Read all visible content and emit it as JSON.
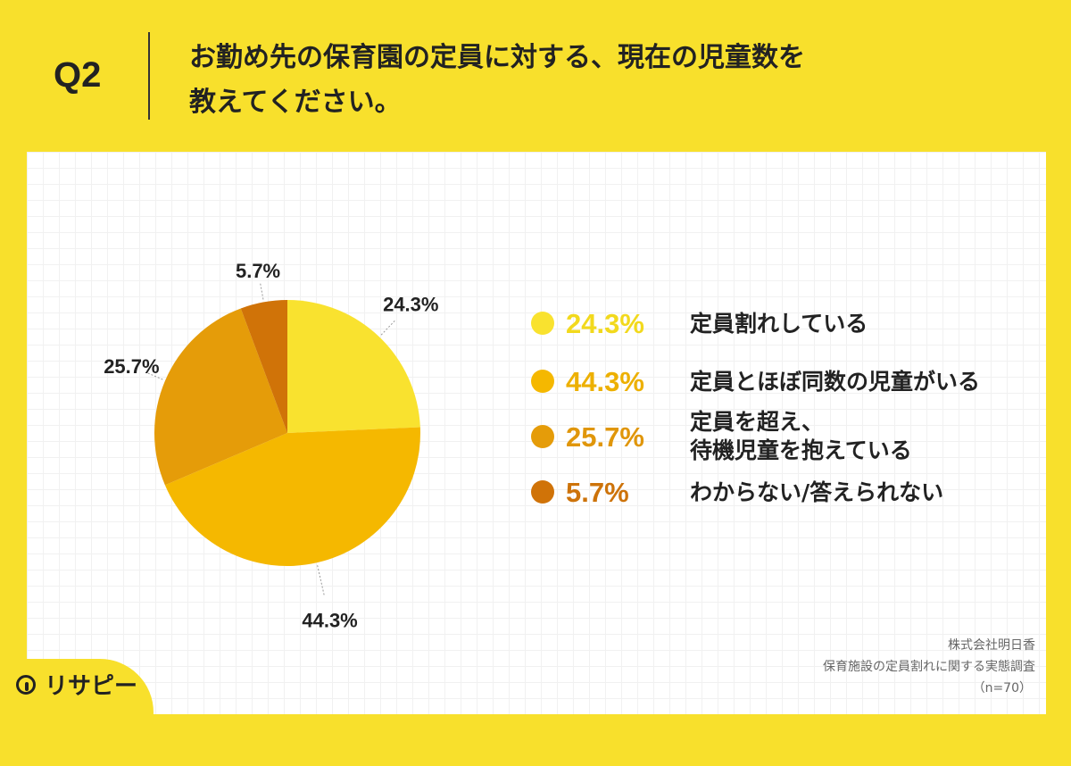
{
  "header": {
    "q_label": "Q2",
    "question_line1": "お勤め先の保育園の定員に対する、現在の児童数を",
    "question_line2": "教えてください。"
  },
  "chart_data": {
    "type": "pie",
    "slices": [
      {
        "label": "定員割れしている",
        "value": 24.3,
        "pct_text": "24.3%",
        "color": "#F9E22F",
        "legend_pct_color": "#F2D91D"
      },
      {
        "label": "定員とほぼ同数の児童がいる",
        "value": 44.3,
        "pct_text": "44.3%",
        "color": "#F5B800",
        "legend_pct_color": "#EDB000"
      },
      {
        "label": "定員を超え、\n待機児童を抱えている",
        "label_lines": [
          "定員を超え、",
          "待機児童を抱えている"
        ],
        "value": 25.7,
        "pct_text": "25.7%",
        "color": "#E59C09",
        "legend_pct_color": "#E0960A"
      },
      {
        "label": "わからない/答えられない",
        "value": 5.7,
        "pct_text": "5.7%",
        "color": "#D07308",
        "legend_pct_color": "#CD730A"
      }
    ]
  },
  "footer": {
    "company": "株式会社明日香",
    "survey": "保育施設の定員割れに関する実態調査",
    "n": "（n=70）"
  },
  "logo": {
    "text": "リサピー",
    "icon": "pin-icon"
  }
}
